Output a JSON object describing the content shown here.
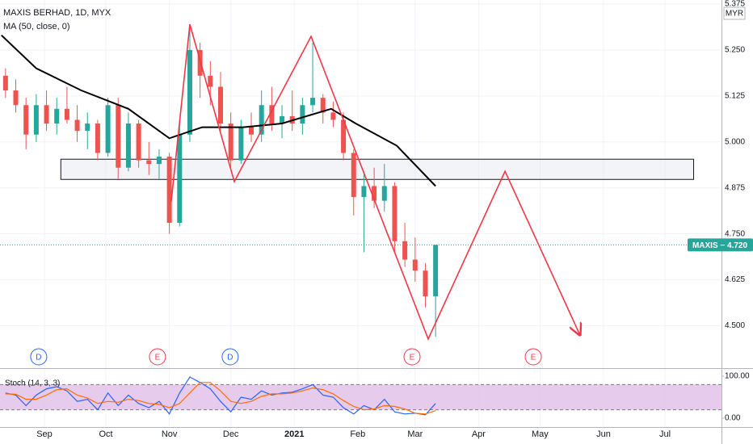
{
  "chart_data": {
    "type": "candlestick",
    "title": "MAXIS BERHAD, 1D, MYX",
    "indicator": "MA (50, close, 0)",
    "currency": "MYR",
    "xlim": [
      9.3,
      361.6
    ],
    "xticks": [
      {
        "value": 31,
        "label": "Sep"
      },
      {
        "value": 61,
        "label": "Oct"
      },
      {
        "value": 92,
        "label": "Nov"
      },
      {
        "value": 122,
        "label": "Dec"
      },
      {
        "value": 153,
        "label": "2021"
      },
      {
        "value": 184,
        "label": "Feb"
      },
      {
        "value": 212,
        "label": "Mar"
      },
      {
        "value": 243,
        "label": "Apr"
      },
      {
        "value": 273,
        "label": "May"
      },
      {
        "value": 304,
        "label": "Jun"
      },
      {
        "value": 334,
        "label": "Jul"
      }
    ],
    "ylim": [
      4.387,
      5.386
    ],
    "yticks": [
      {
        "value": 4.5,
        "label": "4.500"
      },
      {
        "value": 4.625,
        "label": "4.625"
      },
      {
        "value": 4.75,
        "label": "4.750"
      },
      {
        "value": 4.875,
        "label": "4.875"
      },
      {
        "value": 5,
        "label": "5.000"
      },
      {
        "value": 5.125,
        "label": "5.125"
      },
      {
        "value": 5.25,
        "label": "5.250"
      },
      {
        "value": 5.375,
        "label": "5.375"
      }
    ],
    "grid": true,
    "up_color": "#26a69a",
    "down_color": "#ef5350",
    "candles": {
      "x": [
        12,
        17,
        22,
        27,
        32,
        37,
        42,
        47,
        52,
        57,
        62,
        67,
        72,
        77,
        82,
        87,
        92,
        97,
        102,
        107,
        112,
        117,
        122,
        127,
        132,
        137,
        142,
        147,
        152,
        157,
        162,
        167,
        172,
        177,
        182,
        187,
        192,
        197,
        202,
        207,
        212,
        217,
        222
      ],
      "open": [
        5.18,
        5.14,
        5.1,
        5.02,
        5.1,
        5.05,
        5.09,
        5.06,
        5.03,
        5.05,
        4.97,
        5.1,
        4.93,
        5.05,
        4.95,
        4.94,
        4.96,
        4.78,
        5.02,
        5.25,
        5.18,
        5.15,
        5.05,
        4.95,
        5.04,
        5.02,
        5.1,
        5.05,
        5.07,
        5.05,
        5.1,
        5.12,
        5.08,
        5.06,
        4.97,
        4.85,
        4.88,
        4.84,
        4.88,
        4.73,
        4.68,
        4.65,
        4.58
      ],
      "high": [
        5.2,
        5.17,
        5.12,
        5.13,
        5.14,
        5.12,
        5.15,
        5.1,
        5.08,
        5.06,
        5.12,
        5.12,
        5.08,
        5.06,
        5.0,
        4.98,
        4.97,
        5.05,
        5.31,
        5.27,
        5.22,
        5.19,
        5.08,
        5.06,
        5.08,
        5.14,
        5.15,
        5.1,
        5.14,
        5.12,
        5.27,
        5.13,
        5.11,
        5.08,
        4.98,
        4.92,
        4.93,
        4.94,
        4.89,
        4.78,
        4.74,
        4.67,
        4.72
      ],
      "low": [
        5.12,
        5.08,
        4.98,
        5.0,
        5.03,
        5.02,
        5.05,
        5.0,
        4.98,
        4.95,
        4.96,
        4.9,
        4.92,
        4.93,
        4.91,
        4.9,
        4.75,
        4.77,
        5.0,
        5.12,
        5.1,
        5.02,
        4.93,
        4.94,
        5.0,
        5.0,
        5.03,
        5.01,
        5.03,
        5.02,
        5.08,
        5.05,
        5.04,
        4.95,
        4.8,
        4.7,
        4.82,
        4.81,
        4.7,
        4.66,
        4.62,
        4.55,
        4.47
      ],
      "close": [
        5.14,
        5.1,
        5.02,
        5.1,
        5.05,
        5.09,
        5.06,
        5.03,
        5.05,
        4.97,
        5.1,
        4.93,
        5.05,
        4.95,
        4.94,
        4.96,
        4.78,
        5.02,
        5.25,
        5.18,
        5.15,
        5.05,
        4.95,
        5.04,
        5.02,
        5.1,
        5.05,
        5.07,
        5.05,
        5.1,
        5.12,
        5.08,
        5.06,
        4.97,
        4.85,
        4.88,
        4.84,
        4.88,
        4.73,
        4.68,
        4.65,
        4.58,
        4.72
      ]
    },
    "ma": {
      "color": "#000000",
      "x": [
        10,
        27,
        49,
        72,
        92,
        108,
        128,
        147,
        171,
        183,
        203,
        222
      ],
      "values": [
        5.29,
        5.2,
        5.14,
        5.09,
        5.01,
        5.04,
        5.04,
        5.05,
        5.09,
        5.05,
        4.99,
        4.88
      ]
    },
    "zone": {
      "x": [
        39,
        348
      ],
      "y": [
        4.898,
        4.953
      ]
    },
    "drawing": {
      "color": "#f23645",
      "x": [
        92.9,
        102,
        123.7,
        161.2,
        218.4,
        255.9,
        292.5
      ],
      "values": [
        4.837,
        5.32,
        4.892,
        5.287,
        4.464,
        4.92,
        4.475
      ]
    },
    "last_price": {
      "value": 4.72,
      "label": "MAXIS − 4.720",
      "color": "#26a69a"
    },
    "events": [
      {
        "x": 28.2,
        "label": "D",
        "color": "#2962ff"
      },
      {
        "x": 86.2,
        "label": "E",
        "color": "#f23645"
      },
      {
        "x": 121.7,
        "label": "D",
        "color": "#2962ff"
      },
      {
        "x": 210.5,
        "label": "E",
        "color": "#f23645"
      },
      {
        "x": 269.7,
        "label": "E",
        "color": "#f23645"
      }
    ],
    "stoch": {
      "name": "Stoch (14, 3, 3)",
      "ylim": [
        -19.2,
        115.4
      ],
      "yticks": [
        {
          "value": 0,
          "label": "0.00"
        },
        {
          "value": 100,
          "label": "100.00"
        }
      ],
      "band": [
        20,
        80
      ],
      "band_color": "#e1bee7",
      "series": [
        {
          "color": "#2962ff",
          "values": [
            60,
            55,
            30,
            55,
            70,
            75,
            65,
            40,
            45,
            20,
            60,
            30,
            55,
            35,
            25,
            40,
            10,
            60,
            98,
            85,
            70,
            40,
            15,
            50,
            45,
            65,
            55,
            60,
            62,
            70,
            80,
            55,
            50,
            25,
            10,
            30,
            20,
            45,
            15,
            10,
            12,
            8,
            35
          ]
        },
        {
          "color": "#ff6d00",
          "values": [
            58,
            57,
            45,
            45,
            55,
            68,
            70,
            55,
            48,
            35,
            40,
            38,
            45,
            42,
            35,
            33,
            25,
            35,
            60,
            85,
            85,
            65,
            40,
            35,
            40,
            52,
            58,
            58,
            60,
            65,
            72,
            68,
            58,
            42,
            28,
            20,
            22,
            30,
            28,
            22,
            12,
            10,
            18
          ]
        }
      ]
    }
  }
}
